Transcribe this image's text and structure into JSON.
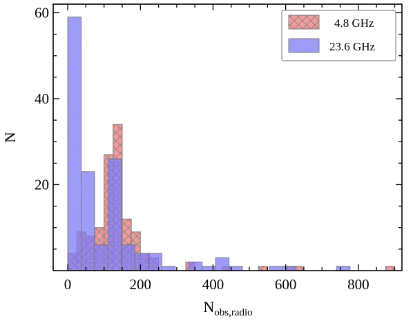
{
  "chart_data": {
    "type": "bar",
    "xlabel": "N",
    "xlabel_sub": "obs,radio",
    "ylabel": "N",
    "xlim": [
      -40,
      920
    ],
    "ylim": [
      0,
      62
    ],
    "xticks": [
      0,
      200,
      400,
      600,
      800
    ],
    "yticks": [
      20,
      40,
      60
    ],
    "grid": false,
    "legend_position": "top-right",
    "series": [
      {
        "name": "4.8 GHz",
        "color": "#f08080",
        "edge": "#7a7a7a",
        "hatch": "crosshatch",
        "bars": [
          {
            "x0": 0,
            "x1": 25,
            "value": 4
          },
          {
            "x0": 25,
            "x1": 50,
            "value": 9
          },
          {
            "x0": 50,
            "x1": 75,
            "value": 8
          },
          {
            "x0": 75,
            "x1": 100,
            "value": 10
          },
          {
            "x0": 100,
            "x1": 125,
            "value": 27
          },
          {
            "x0": 125,
            "x1": 150,
            "value": 34
          },
          {
            "x0": 150,
            "x1": 175,
            "value": 12
          },
          {
            "x0": 175,
            "x1": 200,
            "value": 9
          },
          {
            "x0": 200,
            "x1": 225,
            "value": 4
          },
          {
            "x0": 225,
            "x1": 250,
            "value": 3
          },
          {
            "x0": 325,
            "x1": 350,
            "value": 2
          },
          {
            "x0": 425,
            "x1": 450,
            "value": 1
          },
          {
            "x0": 525,
            "x1": 550,
            "value": 1
          },
          {
            "x0": 600,
            "x1": 625,
            "value": 1
          },
          {
            "x0": 625,
            "x1": 650,
            "value": 1
          },
          {
            "x0": 875,
            "x1": 900,
            "value": 1
          }
        ]
      },
      {
        "name": "23.6 GHz",
        "color": "#7b7bff",
        "edge": "#7a7a7a",
        "hatch": "dots",
        "bars": [
          {
            "x0": 0,
            "x1": 37,
            "value": 59
          },
          {
            "x0": 37,
            "x1": 74,
            "value": 23
          },
          {
            "x0": 74,
            "x1": 111,
            "value": 6
          },
          {
            "x0": 111,
            "x1": 148,
            "value": 26
          },
          {
            "x0": 148,
            "x1": 185,
            "value": 6
          },
          {
            "x0": 185,
            "x1": 222,
            "value": 4
          },
          {
            "x0": 222,
            "x1": 259,
            "value": 4
          },
          {
            "x0": 259,
            "x1": 296,
            "value": 1
          },
          {
            "x0": 333,
            "x1": 370,
            "value": 2
          },
          {
            "x0": 370,
            "x1": 407,
            "value": 1
          },
          {
            "x0": 407,
            "x1": 444,
            "value": 3
          },
          {
            "x0": 444,
            "x1": 481,
            "value": 1
          },
          {
            "x0": 555,
            "x1": 592,
            "value": 1
          },
          {
            "x0": 592,
            "x1": 629,
            "value": 1
          },
          {
            "x0": 740,
            "x1": 777,
            "value": 1
          }
        ]
      }
    ]
  }
}
